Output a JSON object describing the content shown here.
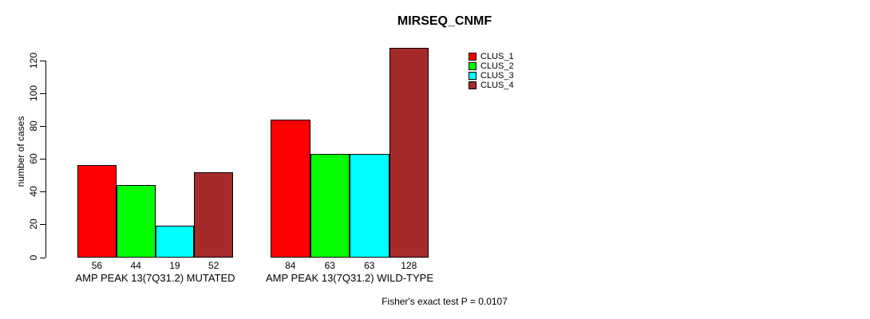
{
  "chart_data": {
    "type": "bar",
    "title": "MIRSEQ_CNMF",
    "ylabel": "number of cases",
    "xlabel": "",
    "ylim": [
      0,
      128
    ],
    "yticks": [
      0,
      20,
      40,
      60,
      80,
      100,
      120
    ],
    "grid": false,
    "legend_position": "top-right",
    "categories": [
      "AMP PEAK 13(7Q31.2) MUTATED",
      "AMP PEAK 13(7Q31.2) WILD-TYPE"
    ],
    "series": [
      {
        "name": "CLUS_1",
        "color": "#FF0000",
        "values": [
          56,
          84
        ]
      },
      {
        "name": "CLUS_2",
        "color": "#00FF00",
        "values": [
          44,
          63
        ]
      },
      {
        "name": "CLUS_3",
        "color": "#00FFFF",
        "values": [
          19,
          63
        ]
      },
      {
        "name": "CLUS_4",
        "color": "#A52A2A",
        "values": [
          52,
          128
        ]
      }
    ],
    "bar_value_labels": [
      [
        56,
        44,
        19,
        52
      ],
      [
        84,
        63,
        63,
        128
      ]
    ],
    "footnote": "Fisher's exact test P = 0.0107"
  }
}
